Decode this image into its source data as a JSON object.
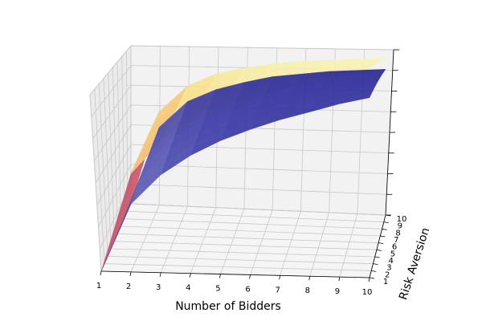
{
  "chart_data": {
    "type": "surface3d",
    "title": "",
    "xlabel": "Number of Bidders",
    "ylabel": "Risk Aversion",
    "zlabel": "",
    "x_ticks": [
      "1",
      "2",
      "3",
      "4",
      "5",
      "6",
      "7",
      "8",
      "9",
      "10"
    ],
    "y_ticks": [
      "1",
      "2",
      "3",
      "4",
      "5",
      "6",
      "7",
      "8",
      "9",
      "10"
    ],
    "z_ticks": [],
    "xlim": [
      1,
      10
    ],
    "ylim": [
      1,
      10
    ],
    "grid": true,
    "series": [
      {
        "surface": "first",
        "colormap": "magma-yellow",
        "values_at_risk_aversion_1": [
          0.0,
          0.55,
          0.71,
          0.79,
          0.84,
          0.87,
          0.89,
          0.91,
          0.92,
          0.93
        ],
        "values_at_risk_aversion_10": [
          0.0,
          0.6,
          0.77,
          0.85,
          0.89,
          0.92,
          0.94,
          0.95,
          0.96,
          0.97
        ]
      },
      {
        "surface": "second",
        "colormap": "blue",
        "values_at_risk_aversion_1": [
          0.0,
          0.38,
          0.53,
          0.62,
          0.68,
          0.72,
          0.75,
          0.77,
          0.79,
          0.8
        ],
        "values_at_risk_aversion_10": [
          0.0,
          0.5,
          0.67,
          0.75,
          0.8,
          0.84,
          0.86,
          0.88,
          0.89,
          0.9
        ]
      }
    ]
  }
}
